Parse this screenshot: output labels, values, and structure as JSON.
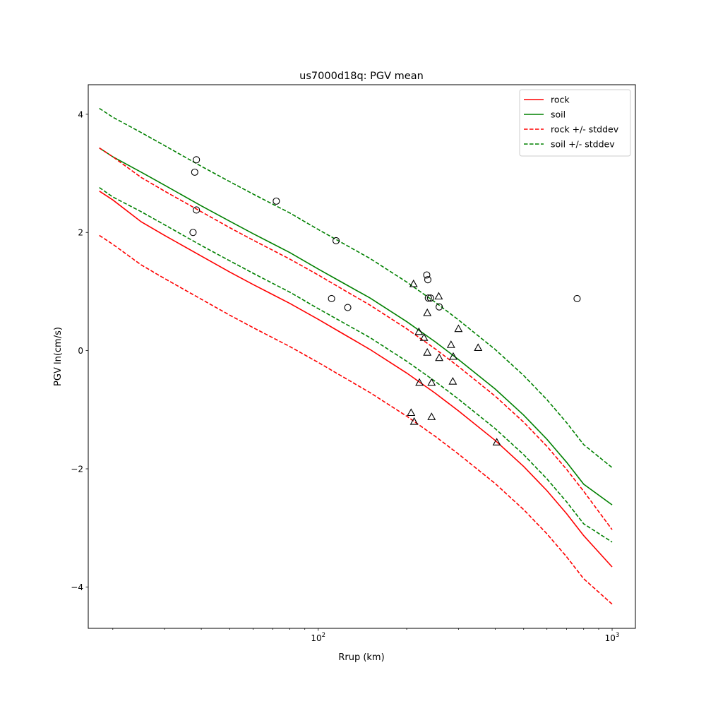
{
  "chart_data": {
    "type": "line",
    "title": "us7000d18q: PGV mean",
    "xlabel": "Rrup (km)",
    "ylabel": "PGV ln(cm/s)",
    "xscale": "log",
    "xlim": [
      16.5,
      1200
    ],
    "ylim": [
      -4.7,
      4.5
    ],
    "x_ticks": [
      {
        "value": 100,
        "base": "10",
        "exp": "2"
      },
      {
        "value": 1000,
        "base": "10",
        "exp": "3"
      }
    ],
    "y_ticks": [
      {
        "value": -4,
        "label": "−4"
      },
      {
        "value": -2,
        "label": "−2"
      },
      {
        "value": 0,
        "label": "0"
      },
      {
        "value": 2,
        "label": "2"
      },
      {
        "value": 4,
        "label": "4"
      }
    ],
    "grid": false,
    "legend_position": "top-right",
    "x": [
      18,
      20,
      25,
      30,
      40,
      50,
      60,
      80,
      100,
      120,
      150,
      200,
      250,
      300,
      400,
      500,
      600,
      700,
      800,
      1000
    ],
    "series": [
      {
        "name": "rock",
        "style": "solid",
        "color": "#ff0000",
        "values": [
          2.7,
          2.55,
          2.18,
          1.95,
          1.6,
          1.33,
          1.12,
          0.8,
          0.53,
          0.3,
          0.02,
          -0.38,
          -0.72,
          -1.02,
          -1.52,
          -1.96,
          -2.37,
          -2.76,
          -3.13,
          -3.66
        ]
      },
      {
        "name": "soil",
        "style": "solid",
        "color": "#008000",
        "values": [
          3.43,
          3.28,
          3.02,
          2.8,
          2.45,
          2.19,
          1.98,
          1.66,
          1.38,
          1.16,
          0.89,
          0.49,
          0.15,
          -0.15,
          -0.65,
          -1.09,
          -1.5,
          -1.89,
          -2.26,
          -2.61
        ]
      },
      {
        "name": "rock +/- stddev",
        "style": "dashed",
        "color": "#ff0000",
        "values": [
          1.95,
          1.8,
          1.45,
          1.22,
          0.87,
          0.6,
          0.39,
          0.07,
          -0.2,
          -0.43,
          -0.71,
          -1.11,
          -1.45,
          -1.75,
          -2.25,
          -2.69,
          -3.1,
          -3.49,
          -3.86,
          -4.29
        ]
      },
      {
        "name": "",
        "style": "dashed",
        "color": "#ff0000",
        "values": [
          3.43,
          3.28,
          2.93,
          2.7,
          2.35,
          2.08,
          1.87,
          1.55,
          1.28,
          1.05,
          0.77,
          0.37,
          0.03,
          -0.27,
          -0.77,
          -1.21,
          -1.62,
          -2.01,
          -2.38,
          -3.03
        ]
      },
      {
        "name": "soil +/- stddev",
        "style": "dashed",
        "color": "#008000",
        "values": [
          2.76,
          2.6,
          2.35,
          2.13,
          1.78,
          1.52,
          1.31,
          0.99,
          0.71,
          0.49,
          0.22,
          -0.18,
          -0.52,
          -0.82,
          -1.32,
          -1.76,
          -2.17,
          -2.56,
          -2.93,
          -3.24
        ]
      },
      {
        "name": "",
        "style": "dashed",
        "color": "#008000",
        "values": [
          4.1,
          3.95,
          3.69,
          3.47,
          3.12,
          2.86,
          2.65,
          2.33,
          2.05,
          1.83,
          1.56,
          1.16,
          0.82,
          0.52,
          0.02,
          -0.42,
          -0.83,
          -1.22,
          -1.59,
          -1.98
        ]
      }
    ],
    "scatter": [
      {
        "marker": "circle",
        "points": [
          [
            38.5,
            3.23
          ],
          [
            38,
            3.02
          ],
          [
            38.5,
            2.38
          ],
          [
            37.5,
            2.0
          ],
          [
            72,
            2.53
          ],
          [
            115,
            1.86
          ],
          [
            111,
            0.88
          ],
          [
            126,
            0.73
          ],
          [
            234,
            1.28
          ],
          [
            236,
            1.2
          ],
          [
            237,
            0.89
          ],
          [
            241,
            0.89
          ],
          [
            258,
            0.74
          ],
          [
            760,
            0.88
          ]
        ]
      },
      {
        "marker": "triangle",
        "points": [
          [
            211,
            1.13
          ],
          [
            257,
            0.92
          ],
          [
            235,
            0.64
          ],
          [
            300,
            0.37
          ],
          [
            220,
            0.32
          ],
          [
            229,
            0.22
          ],
          [
            283,
            0.1
          ],
          [
            350,
            0.05
          ],
          [
            235,
            -0.03
          ],
          [
            288,
            -0.1
          ],
          [
            258,
            -0.12
          ],
          [
            221,
            -0.54
          ],
          [
            243,
            -0.54
          ],
          [
            287,
            -0.52
          ],
          [
            207,
            -1.05
          ],
          [
            212,
            -1.2
          ],
          [
            243,
            -1.12
          ],
          [
            405,
            -1.55
          ]
        ]
      }
    ]
  }
}
